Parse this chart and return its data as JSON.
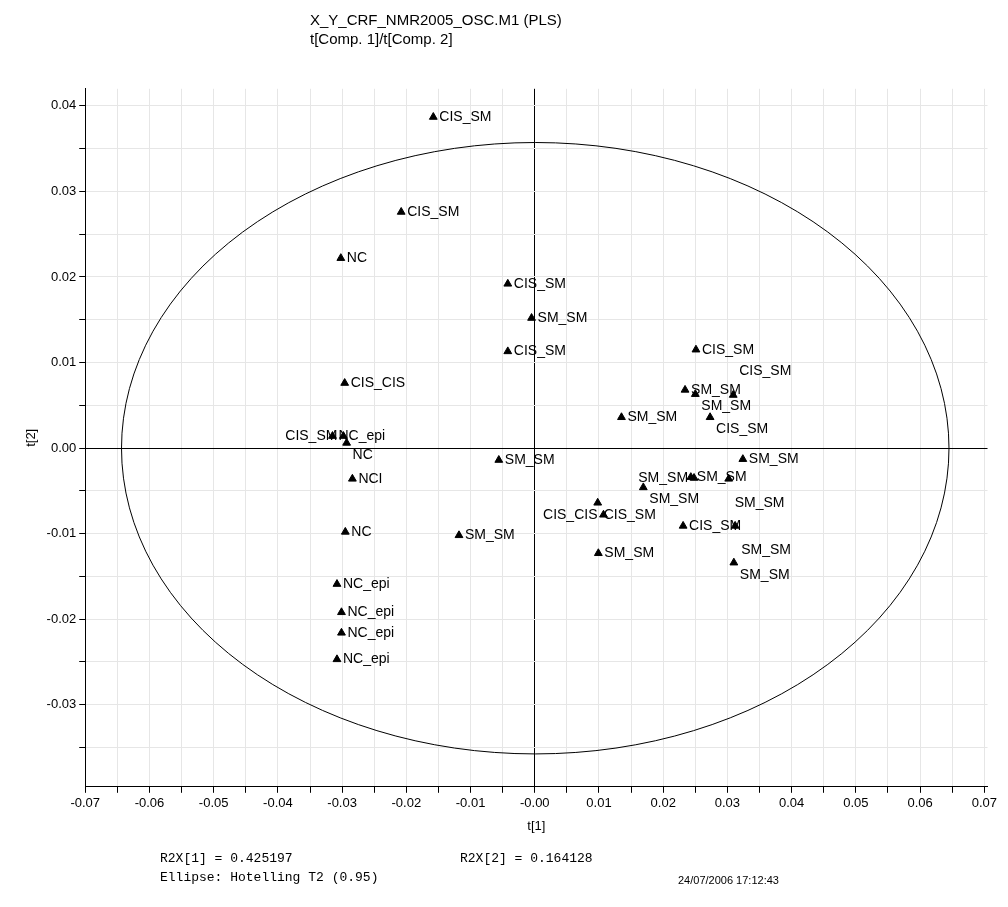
{
  "chart_data": {
    "type": "scatter",
    "title": "X_Y_CRF_NMR2005_OSC.M1 (PLS)",
    "subtitle": "t[Comp. 1]/t[Comp. 2]",
    "xlabel": "t[1]",
    "ylabel": "t[2]",
    "xlim": [
      -0.07,
      0.0705
    ],
    "ylim": [
      -0.0396,
      0.042
    ],
    "xticks": [
      -0.07,
      {
        "value": -0.065,
        "label": null
      },
      -0.06,
      {
        "value": -0.055,
        "label": null
      },
      -0.05,
      {
        "value": -0.045,
        "label": null
      },
      -0.04,
      {
        "value": -0.035,
        "label": null
      },
      -0.03,
      {
        "value": -0.025,
        "label": null
      },
      -0.02,
      {
        "value": -0.015,
        "label": null
      },
      -0.01,
      {
        "value": -0.005,
        "label": null
      },
      {
        "value": 0,
        "label": "-0.00"
      },
      {
        "value": 0.005,
        "label": null
      },
      0.01,
      {
        "value": 0.015,
        "label": null
      },
      0.02,
      {
        "value": 0.025,
        "label": null
      },
      0.03,
      {
        "value": 0.035,
        "label": null
      },
      0.04,
      {
        "value": 0.045,
        "label": null
      },
      0.05,
      {
        "value": 0.055,
        "label": null
      },
      0.06,
      {
        "value": 0.065,
        "label": null
      },
      0.07
    ],
    "yticks": [
      {
        "value": -0.035,
        "label": null
      },
      -0.03,
      {
        "value": -0.025,
        "label": null
      },
      -0.02,
      {
        "value": -0.015,
        "label": null
      },
      -0.01,
      {
        "value": -0.005,
        "label": null
      },
      {
        "value": 0,
        "label": "0.00"
      },
      {
        "value": 0.005,
        "label": null
      },
      0.01,
      {
        "value": 0.015,
        "label": null
      },
      0.02,
      {
        "value": 0.025,
        "label": null
      },
      0.03,
      {
        "value": 0.035,
        "label": null
      },
      0.04
    ],
    "grid": true,
    "legend": false,
    "series": [
      {
        "type": "scatter",
        "color": "#000000",
        "marker": "triangle",
        "x": [
          -0.0158,
          -0.0208,
          -0.0302,
          -0.0042,
          -0.0005,
          -0.0042,
          0.0251,
          -0.0296,
          0.0234,
          0.025,
          0.0309,
          0.0135,
          0.0273,
          -0.0315,
          -0.0298,
          -0.0293,
          -0.0284,
          -0.0295,
          -0.0308,
          -0.0301,
          -0.0301,
          -0.0308,
          -0.0056,
          -0.0118,
          0.0324,
          0.0243,
          0.0248,
          0.0302,
          0.0169,
          0.0098,
          0.0107,
          0.0231,
          0.0312,
          0.0099,
          0.031
        ],
        "values": [
          0.0387,
          0.0276,
          0.0222,
          0.0192,
          0.0152,
          0.0113,
          0.0115,
          0.0076,
          0.0068,
          0.0063,
          0.0062,
          0.0036,
          0.0036,
          0.0014,
          0.0014,
          0.0006,
          -0.0036,
          -0.0098,
          -0.0159,
          -0.0192,
          -0.0216,
          -0.0247,
          -0.0014,
          -0.0102,
          -0.0013,
          -0.0034,
          -0.0035,
          -0.0036,
          -0.0046,
          -0.0064,
          -0.0078,
          -0.0091,
          -0.0091,
          -0.0123,
          -0.0134
        ],
        "value_labels": [
          "CIS_SM",
          "CIS_SM",
          "NC",
          "CIS_SM",
          "SM_SM",
          "CIS_SM",
          "CIS_SM",
          "CIS_CIS",
          "SM_SM",
          "SM_SM",
          "CIS_SM",
          "SM_SM",
          "CIS_SM",
          "NC_epi",
          "CIS_SM",
          "NC",
          "NCI",
          "NC",
          "NC_epi",
          "NC_epi",
          "NC_epi",
          "NC_epi",
          "SM_SM",
          "SM_SM",
          "SM_SM",
          "SM_SM",
          "SM_SM",
          "SM_SM",
          "SM_SM",
          "CIS_SM",
          "CIS_CIS",
          "CIS_SM",
          "SM_SM",
          "SM_SM",
          "SM_SM"
        ]
      }
    ],
    "annotations": [
      "R2X[1] = 0.425197",
      "R2X[2] = 0.164128",
      "Ellipse: Hotelling T2 (0.95)",
      "24/07/2006 17:12:43"
    ]
  }
}
